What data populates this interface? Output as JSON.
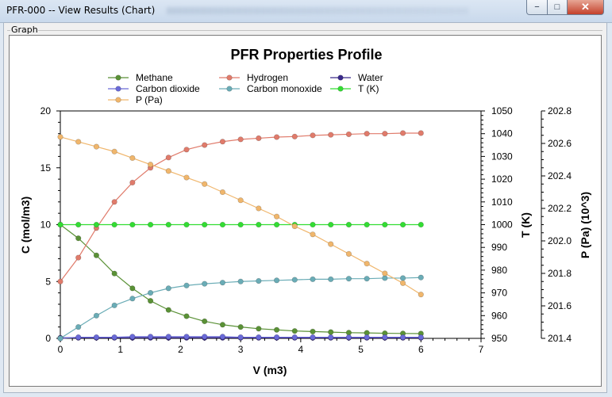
{
  "window": {
    "title": "PFR-000  -- View Results (Chart)",
    "buttons": {
      "minimize": "−",
      "maximize": "□",
      "close": "✕"
    }
  },
  "tab": {
    "label": "Graph"
  },
  "colors": {
    "methane": "#5a9136",
    "hydrogen": "#e07b6b",
    "water": "#3a2a8a",
    "carbon_dioxide": "#6a6ad8",
    "carbon_monoxide": "#6aacb6",
    "temperature": "#33dd33",
    "pressure": "#f0b66c"
  },
  "chart_data": {
    "type": "line",
    "title": "PFR Properties Profile",
    "xlabel": "V (m3)",
    "xlim": [
      0,
      7
    ],
    "x_ticks": [
      "0",
      "1",
      "2",
      "3",
      "4",
      "5",
      "6",
      "7"
    ],
    "y_axes": {
      "concentration": {
        "label": "C (mol/m3)",
        "lim": [
          0,
          20
        ],
        "ticks": [
          "0",
          "5",
          "10",
          "15",
          "20"
        ]
      },
      "temperature": {
        "label": "T (K)",
        "lim": [
          950,
          1050
        ],
        "ticks": [
          "950",
          "960",
          "970",
          "980",
          "990",
          "1000",
          "1010",
          "1020",
          "1030",
          "1040",
          "1050"
        ]
      },
      "pressure": {
        "label": "P (Pa) (10^3)",
        "lim": [
          201.4,
          202.8
        ],
        "ticks": [
          "201.4",
          "201.6",
          "201.8",
          "202.0",
          "202.2",
          "202.4",
          "202.6",
          "202.8"
        ]
      }
    },
    "legend": {
      "placement": "top",
      "order": [
        "Methane",
        "Hydrogen",
        "Water",
        "Carbon dioxide",
        "Carbon monoxide",
        "T (K)",
        "P (Pa)"
      ]
    },
    "x": [
      0,
      0.3,
      0.6,
      0.9,
      1.2,
      1.5,
      1.8,
      2.1,
      2.4,
      2.7,
      3.0,
      3.3,
      3.6,
      3.9,
      4.2,
      4.5,
      4.8,
      5.1,
      5.4,
      5.7,
      6.0
    ],
    "series": [
      {
        "name": "Methane",
        "axis": "concentration",
        "color_key": "methane",
        "values": [
          10.0,
          8.8,
          7.3,
          5.7,
          4.4,
          3.3,
          2.5,
          1.95,
          1.5,
          1.2,
          1.0,
          0.85,
          0.75,
          0.65,
          0.6,
          0.55,
          0.5,
          0.48,
          0.45,
          0.43,
          0.42
        ]
      },
      {
        "name": "Hydrogen",
        "axis": "concentration",
        "color_key": "hydrogen",
        "values": [
          5.0,
          7.1,
          9.7,
          12.0,
          13.7,
          15.0,
          15.9,
          16.6,
          17.0,
          17.3,
          17.5,
          17.6,
          17.7,
          17.75,
          17.85,
          17.9,
          17.95,
          18.0,
          18.0,
          18.05,
          18.05
        ]
      },
      {
        "name": "Water",
        "axis": "concentration",
        "color_key": "water",
        "values": [
          0.05,
          0.05,
          0.05,
          0.05,
          0.05,
          0.05,
          0.05,
          0.05,
          0.05,
          0.05,
          0.05,
          0.05,
          0.05,
          0.05,
          0.05,
          0.05,
          0.05,
          0.05,
          0.05,
          0.05,
          0.05
        ]
      },
      {
        "name": "Carbon dioxide",
        "axis": "concentration",
        "color_key": "carbon_dioxide",
        "values": [
          0.0,
          0.1,
          0.1,
          0.1,
          0.15,
          0.15,
          0.15,
          0.15,
          0.15,
          0.15,
          0.1,
          0.1,
          0.1,
          0.1,
          0.1,
          0.1,
          0.1,
          0.1,
          0.1,
          0.1,
          0.1
        ]
      },
      {
        "name": "Carbon monoxide",
        "axis": "concentration",
        "color_key": "carbon_monoxide",
        "values": [
          0.0,
          1.0,
          2.0,
          2.9,
          3.5,
          4.0,
          4.4,
          4.65,
          4.8,
          4.9,
          5.0,
          5.05,
          5.1,
          5.15,
          5.2,
          5.2,
          5.25,
          5.25,
          5.3,
          5.3,
          5.35
        ]
      },
      {
        "name": "T (K)",
        "axis": "temperature",
        "color_key": "temperature",
        "values": [
          1000,
          1000,
          1000,
          1000,
          1000,
          1000,
          1000,
          1000,
          1000,
          1000,
          1000,
          1000,
          1000,
          1000,
          1000,
          1000,
          1000,
          1000,
          1000,
          1000,
          1000
        ]
      },
      {
        "name": "P (Pa)",
        "axis": "pressure",
        "color_key": "pressure",
        "values": [
          202.64,
          202.61,
          202.58,
          202.55,
          202.51,
          202.47,
          202.43,
          202.39,
          202.35,
          202.3,
          202.25,
          202.2,
          202.15,
          202.09,
          202.04,
          201.98,
          201.92,
          201.86,
          201.8,
          201.74,
          201.67
        ]
      }
    ]
  }
}
